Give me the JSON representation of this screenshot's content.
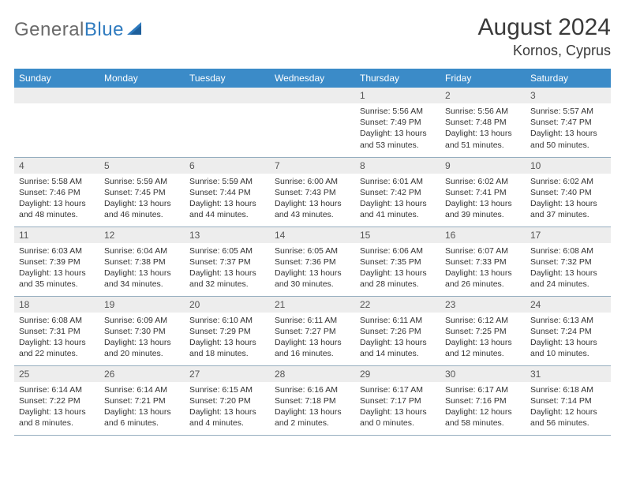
{
  "logo": {
    "part1": "General",
    "part2": "Blue"
  },
  "title": "August 2024",
  "location": "Kornos, Cyprus",
  "colors": {
    "header_bg": "#3b8bc8",
    "header_fg": "#ffffff",
    "daynum_bg": "#ededed",
    "daynum_fg": "#555555",
    "border": "#96aebf",
    "logo_gray": "#6a6a6a",
    "logo_blue": "#2f7bbf"
  },
  "weekdays": [
    "Sunday",
    "Monday",
    "Tuesday",
    "Wednesday",
    "Thursday",
    "Friday",
    "Saturday"
  ],
  "weeks": [
    [
      {
        "day": null
      },
      {
        "day": null
      },
      {
        "day": null
      },
      {
        "day": null
      },
      {
        "day": "1",
        "sunrise": "Sunrise: 5:56 AM",
        "sunset": "Sunset: 7:49 PM",
        "daylight": "Daylight: 13 hours and 53 minutes."
      },
      {
        "day": "2",
        "sunrise": "Sunrise: 5:56 AM",
        "sunset": "Sunset: 7:48 PM",
        "daylight": "Daylight: 13 hours and 51 minutes."
      },
      {
        "day": "3",
        "sunrise": "Sunrise: 5:57 AM",
        "sunset": "Sunset: 7:47 PM",
        "daylight": "Daylight: 13 hours and 50 minutes."
      }
    ],
    [
      {
        "day": "4",
        "sunrise": "Sunrise: 5:58 AM",
        "sunset": "Sunset: 7:46 PM",
        "daylight": "Daylight: 13 hours and 48 minutes."
      },
      {
        "day": "5",
        "sunrise": "Sunrise: 5:59 AM",
        "sunset": "Sunset: 7:45 PM",
        "daylight": "Daylight: 13 hours and 46 minutes."
      },
      {
        "day": "6",
        "sunrise": "Sunrise: 5:59 AM",
        "sunset": "Sunset: 7:44 PM",
        "daylight": "Daylight: 13 hours and 44 minutes."
      },
      {
        "day": "7",
        "sunrise": "Sunrise: 6:00 AM",
        "sunset": "Sunset: 7:43 PM",
        "daylight": "Daylight: 13 hours and 43 minutes."
      },
      {
        "day": "8",
        "sunrise": "Sunrise: 6:01 AM",
        "sunset": "Sunset: 7:42 PM",
        "daylight": "Daylight: 13 hours and 41 minutes."
      },
      {
        "day": "9",
        "sunrise": "Sunrise: 6:02 AM",
        "sunset": "Sunset: 7:41 PM",
        "daylight": "Daylight: 13 hours and 39 minutes."
      },
      {
        "day": "10",
        "sunrise": "Sunrise: 6:02 AM",
        "sunset": "Sunset: 7:40 PM",
        "daylight": "Daylight: 13 hours and 37 minutes."
      }
    ],
    [
      {
        "day": "11",
        "sunrise": "Sunrise: 6:03 AM",
        "sunset": "Sunset: 7:39 PM",
        "daylight": "Daylight: 13 hours and 35 minutes."
      },
      {
        "day": "12",
        "sunrise": "Sunrise: 6:04 AM",
        "sunset": "Sunset: 7:38 PM",
        "daylight": "Daylight: 13 hours and 34 minutes."
      },
      {
        "day": "13",
        "sunrise": "Sunrise: 6:05 AM",
        "sunset": "Sunset: 7:37 PM",
        "daylight": "Daylight: 13 hours and 32 minutes."
      },
      {
        "day": "14",
        "sunrise": "Sunrise: 6:05 AM",
        "sunset": "Sunset: 7:36 PM",
        "daylight": "Daylight: 13 hours and 30 minutes."
      },
      {
        "day": "15",
        "sunrise": "Sunrise: 6:06 AM",
        "sunset": "Sunset: 7:35 PM",
        "daylight": "Daylight: 13 hours and 28 minutes."
      },
      {
        "day": "16",
        "sunrise": "Sunrise: 6:07 AM",
        "sunset": "Sunset: 7:33 PM",
        "daylight": "Daylight: 13 hours and 26 minutes."
      },
      {
        "day": "17",
        "sunrise": "Sunrise: 6:08 AM",
        "sunset": "Sunset: 7:32 PM",
        "daylight": "Daylight: 13 hours and 24 minutes."
      }
    ],
    [
      {
        "day": "18",
        "sunrise": "Sunrise: 6:08 AM",
        "sunset": "Sunset: 7:31 PM",
        "daylight": "Daylight: 13 hours and 22 minutes."
      },
      {
        "day": "19",
        "sunrise": "Sunrise: 6:09 AM",
        "sunset": "Sunset: 7:30 PM",
        "daylight": "Daylight: 13 hours and 20 minutes."
      },
      {
        "day": "20",
        "sunrise": "Sunrise: 6:10 AM",
        "sunset": "Sunset: 7:29 PM",
        "daylight": "Daylight: 13 hours and 18 minutes."
      },
      {
        "day": "21",
        "sunrise": "Sunrise: 6:11 AM",
        "sunset": "Sunset: 7:27 PM",
        "daylight": "Daylight: 13 hours and 16 minutes."
      },
      {
        "day": "22",
        "sunrise": "Sunrise: 6:11 AM",
        "sunset": "Sunset: 7:26 PM",
        "daylight": "Daylight: 13 hours and 14 minutes."
      },
      {
        "day": "23",
        "sunrise": "Sunrise: 6:12 AM",
        "sunset": "Sunset: 7:25 PM",
        "daylight": "Daylight: 13 hours and 12 minutes."
      },
      {
        "day": "24",
        "sunrise": "Sunrise: 6:13 AM",
        "sunset": "Sunset: 7:24 PM",
        "daylight": "Daylight: 13 hours and 10 minutes."
      }
    ],
    [
      {
        "day": "25",
        "sunrise": "Sunrise: 6:14 AM",
        "sunset": "Sunset: 7:22 PM",
        "daylight": "Daylight: 13 hours and 8 minutes."
      },
      {
        "day": "26",
        "sunrise": "Sunrise: 6:14 AM",
        "sunset": "Sunset: 7:21 PM",
        "daylight": "Daylight: 13 hours and 6 minutes."
      },
      {
        "day": "27",
        "sunrise": "Sunrise: 6:15 AM",
        "sunset": "Sunset: 7:20 PM",
        "daylight": "Daylight: 13 hours and 4 minutes."
      },
      {
        "day": "28",
        "sunrise": "Sunrise: 6:16 AM",
        "sunset": "Sunset: 7:18 PM",
        "daylight": "Daylight: 13 hours and 2 minutes."
      },
      {
        "day": "29",
        "sunrise": "Sunrise: 6:17 AM",
        "sunset": "Sunset: 7:17 PM",
        "daylight": "Daylight: 13 hours and 0 minutes."
      },
      {
        "day": "30",
        "sunrise": "Sunrise: 6:17 AM",
        "sunset": "Sunset: 7:16 PM",
        "daylight": "Daylight: 12 hours and 58 minutes."
      },
      {
        "day": "31",
        "sunrise": "Sunrise: 6:18 AM",
        "sunset": "Sunset: 7:14 PM",
        "daylight": "Daylight: 12 hours and 56 minutes."
      }
    ]
  ]
}
